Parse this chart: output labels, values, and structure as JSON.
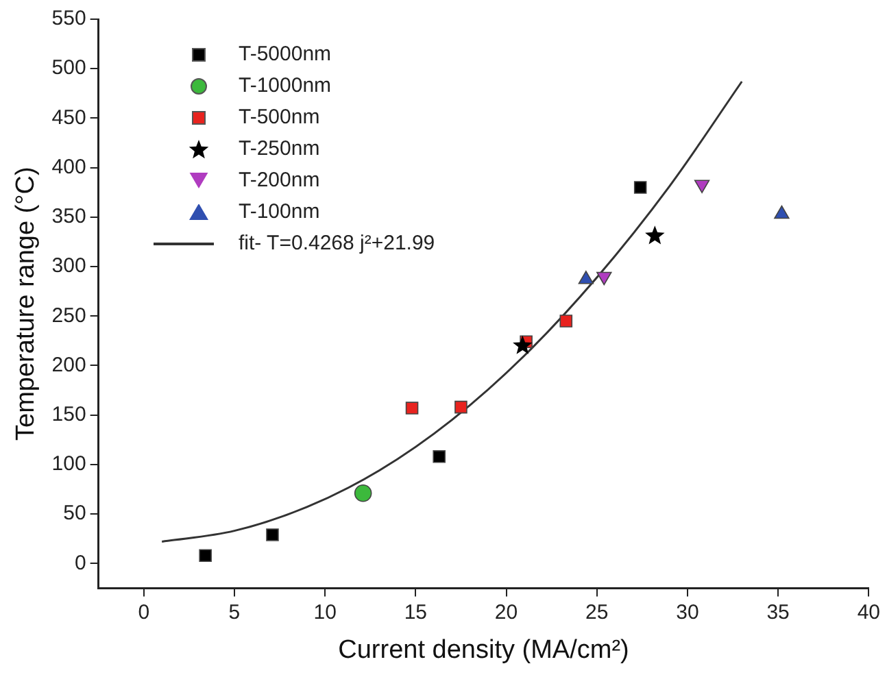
{
  "chart_data": {
    "type": "scatter",
    "xlabel": "Current density (MA/cm²)",
    "ylabel": "Temperature range (°C)",
    "xlim": [
      -2.5,
      40
    ],
    "xticks": [
      0,
      5,
      10,
      15,
      20,
      25,
      30,
      35,
      40
    ],
    "ylim": [
      -25,
      550
    ],
    "yticks": [
      0,
      50,
      100,
      150,
      200,
      250,
      300,
      350,
      400,
      450,
      500,
      550
    ],
    "grid": false,
    "legend": "top left",
    "series": [
      {
        "name": "T-5000nm",
        "color": "#000000",
        "marker": "square",
        "x": [
          3.4,
          7.1,
          16.3,
          27.4
        ],
        "values": [
          8,
          29,
          108,
          380
        ]
      },
      {
        "name": "T-1000nm",
        "color": "#3cb93c",
        "marker": "circle",
        "x": [
          12.1
        ],
        "values": [
          71
        ]
      },
      {
        "name": "T-500nm",
        "color": "#e8231f",
        "marker": "square",
        "x": [
          14.8,
          17.5,
          21.1,
          23.3
        ],
        "values": [
          157,
          158,
          224,
          245
        ]
      },
      {
        "name": "T-250nm",
        "color": "#000000",
        "marker": "star",
        "x": [
          20.9,
          28.2
        ],
        "values": [
          220,
          331
        ]
      },
      {
        "name": "T-200nm",
        "color": "#b03cc0",
        "marker": "triangle-down",
        "x": [
          25.4,
          30.8
        ],
        "values": [
          290,
          383
        ]
      },
      {
        "name": "T-100nm",
        "color": "#2f4fb0",
        "marker": "triangle",
        "x": [
          24.4,
          35.2
        ],
        "values": [
          287,
          353
        ]
      },
      {
        "name": "fit-  T=0.4268 j²+21.99",
        "type": "line",
        "color": "#333333",
        "marker": "none",
        "x": [
          1,
          5,
          9,
          13,
          17,
          21,
          25,
          29,
          33
        ],
        "values": [
          22,
          33,
          57,
          94,
          145,
          210,
          289,
          381,
          487
        ]
      }
    ]
  }
}
